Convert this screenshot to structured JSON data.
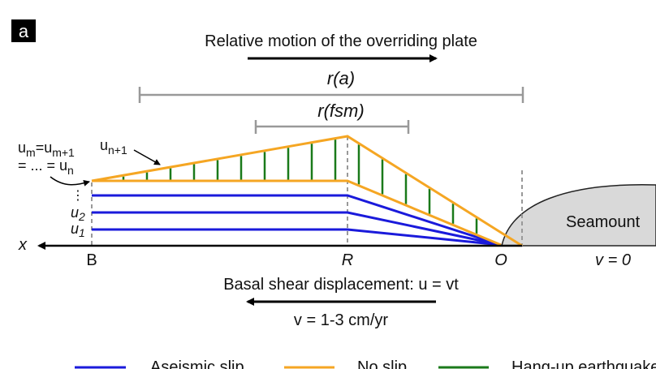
{
  "panel_label": "a",
  "top_arrow_label": "Relative motion of the overriding plate",
  "range_a": "r(a)",
  "range_fsm": "r(fsm)",
  "slip_labels": {
    "um_line1": [
      [
        "u",
        "m"
      ],
      [
        "=u",
        "m+1"
      ]
    ],
    "um_line2": [
      [
        "= ... = u",
        "n"
      ]
    ],
    "un1": [
      "u",
      "n+1"
    ],
    "dots": "⋮",
    "u2": [
      "u",
      "2"
    ],
    "u1": [
      "u",
      "1"
    ]
  },
  "axis_label": "x",
  "points": [
    "B",
    "R",
    "O"
  ],
  "seamount": "Seamount",
  "seamount_velocity": "v = 0",
  "basal_label": "Basal shear displacement: u = vt",
  "plate_velocity": "v = 1-3 cm/yr",
  "legend": [
    "Aseismic slip",
    "No slip",
    "Hang-up earthquake"
  ]
}
